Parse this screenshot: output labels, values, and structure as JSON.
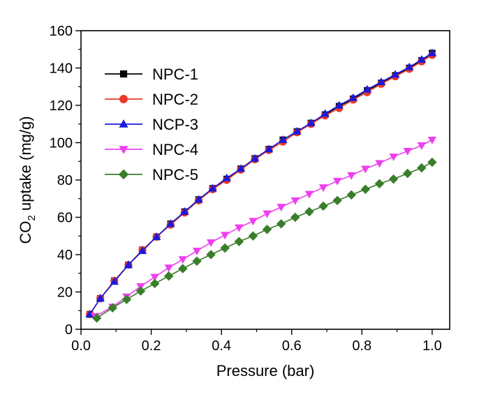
{
  "chart_data": {
    "type": "line",
    "xlabel": "Pressure (bar)",
    "ylabel_main": "CO",
    "ylabel_sub": "2",
    "ylabel_rest": " uptake (mg/g)",
    "xlim": [
      0.0,
      1.05
    ],
    "ylim": [
      0,
      160
    ],
    "xticks": [
      0.0,
      0.2,
      0.4,
      0.6,
      0.8,
      1.0
    ],
    "xtick_labels": [
      "0.0",
      "0.2",
      "0.4",
      "0.6",
      "0.8",
      "1.0"
    ],
    "yticks": [
      0,
      20,
      40,
      60,
      80,
      100,
      120,
      140,
      160
    ],
    "ytick_labels": [
      "0",
      "20",
      "40",
      "60",
      "80",
      "100",
      "120",
      "140",
      "160"
    ],
    "grid": false,
    "legend_position": "upper-left",
    "series": [
      {
        "name": "NPC-1",
        "color": "#000000",
        "marker": "square",
        "x": [
          0.025,
          0.055,
          0.095,
          0.135,
          0.175,
          0.215,
          0.255,
          0.295,
          0.335,
          0.375,
          0.415,
          0.455,
          0.495,
          0.535,
          0.575,
          0.615,
          0.655,
          0.695,
          0.735,
          0.775,
          0.815,
          0.855,
          0.895,
          0.935,
          0.97,
          1.0
        ],
        "y": [
          8,
          16.5,
          26,
          34.5,
          42.5,
          49.5,
          56.5,
          63,
          69.5,
          75.5,
          80.5,
          86,
          91.5,
          96.5,
          101.5,
          106,
          110.5,
          115,
          119.5,
          123.5,
          128,
          132,
          136,
          140,
          144,
          148
        ]
      },
      {
        "name": "NPC-2",
        "color": "#e8382a",
        "marker": "circle",
        "x": [
          0.025,
          0.055,
          0.095,
          0.135,
          0.175,
          0.215,
          0.255,
          0.295,
          0.335,
          0.375,
          0.415,
          0.455,
          0.495,
          0.535,
          0.575,
          0.615,
          0.655,
          0.695,
          0.735,
          0.775,
          0.815,
          0.855,
          0.895,
          0.935,
          0.97,
          1.0
        ],
        "y": [
          8,
          16.5,
          26,
          34.5,
          42.5,
          49.5,
          56,
          62.5,
          69,
          75,
          80,
          85.5,
          91,
          96,
          100.5,
          105.5,
          110,
          114.5,
          118.5,
          123,
          127,
          131.5,
          135.5,
          139.5,
          143.5,
          147
        ]
      },
      {
        "name": "NCP-3",
        "color": "#1a1adb",
        "marker": "triangle-up",
        "x": [
          0.025,
          0.055,
          0.095,
          0.135,
          0.175,
          0.215,
          0.255,
          0.295,
          0.335,
          0.375,
          0.415,
          0.455,
          0.495,
          0.535,
          0.575,
          0.615,
          0.655,
          0.695,
          0.735,
          0.775,
          0.815,
          0.855,
          0.895,
          0.935,
          0.97,
          1.0
        ],
        "y": [
          8,
          16.5,
          25.5,
          34.5,
          42,
          49.5,
          56.5,
          63,
          69.5,
          75.5,
          81,
          86,
          91.5,
          96.5,
          101.5,
          106,
          110.5,
          115.5,
          120,
          124,
          128.5,
          132.5,
          136.5,
          140.5,
          144.5,
          148
        ]
      },
      {
        "name": "NPC-4",
        "color": "#ee3fee",
        "marker": "triangle-down",
        "x": [
          0.04,
          0.09,
          0.13,
          0.17,
          0.21,
          0.25,
          0.29,
          0.33,
          0.37,
          0.41,
          0.45,
          0.49,
          0.53,
          0.57,
          0.61,
          0.65,
          0.69,
          0.73,
          0.77,
          0.81,
          0.85,
          0.89,
          0.93,
          0.97,
          1.0
        ],
        "y": [
          7,
          12,
          17.5,
          23,
          28,
          33,
          37.5,
          42,
          46.5,
          50.5,
          54.5,
          58,
          62,
          65.5,
          69,
          72.5,
          76,
          79.5,
          82.5,
          86,
          89,
          92.5,
          95.5,
          98.5,
          101.5
        ]
      },
      {
        "name": "NPC-5",
        "color": "#3a7d2a",
        "marker": "diamond",
        "x": [
          0.045,
          0.09,
          0.13,
          0.17,
          0.21,
          0.25,
          0.29,
          0.33,
          0.37,
          0.41,
          0.45,
          0.49,
          0.53,
          0.57,
          0.61,
          0.65,
          0.69,
          0.73,
          0.77,
          0.81,
          0.85,
          0.89,
          0.93,
          0.97,
          1.0
        ],
        "y": [
          6,
          11.5,
          16,
          20.5,
          24.5,
          28.5,
          32.5,
          36.5,
          40,
          43.5,
          47,
          50,
          53.5,
          56.5,
          60,
          63,
          66,
          69,
          72,
          75,
          78,
          80.5,
          83.5,
          86.5,
          89.5
        ]
      }
    ]
  }
}
